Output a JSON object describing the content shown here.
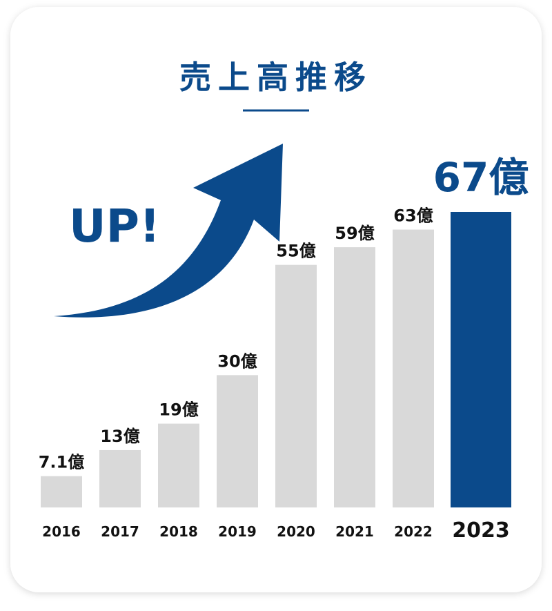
{
  "chart_data": {
    "type": "bar",
    "title": "売上高推移",
    "annotation": "UP!",
    "categories": [
      "2016",
      "2017",
      "2018",
      "2019",
      "2020",
      "2021",
      "2022",
      "2023"
    ],
    "values": [
      7.1,
      13,
      19,
      30,
      55,
      59,
      63,
      67
    ],
    "value_labels": [
      "7.1億",
      "13億",
      "19億",
      "30億",
      "55億",
      "59億",
      "63億",
      "67億"
    ],
    "colors": [
      "#d9d9d9",
      "#d9d9d9",
      "#d9d9d9",
      "#d9d9d9",
      "#d9d9d9",
      "#d9d9d9",
      "#d9d9d9",
      "#0b4a8b"
    ],
    "accent_color": "#0b4a8b"
  }
}
